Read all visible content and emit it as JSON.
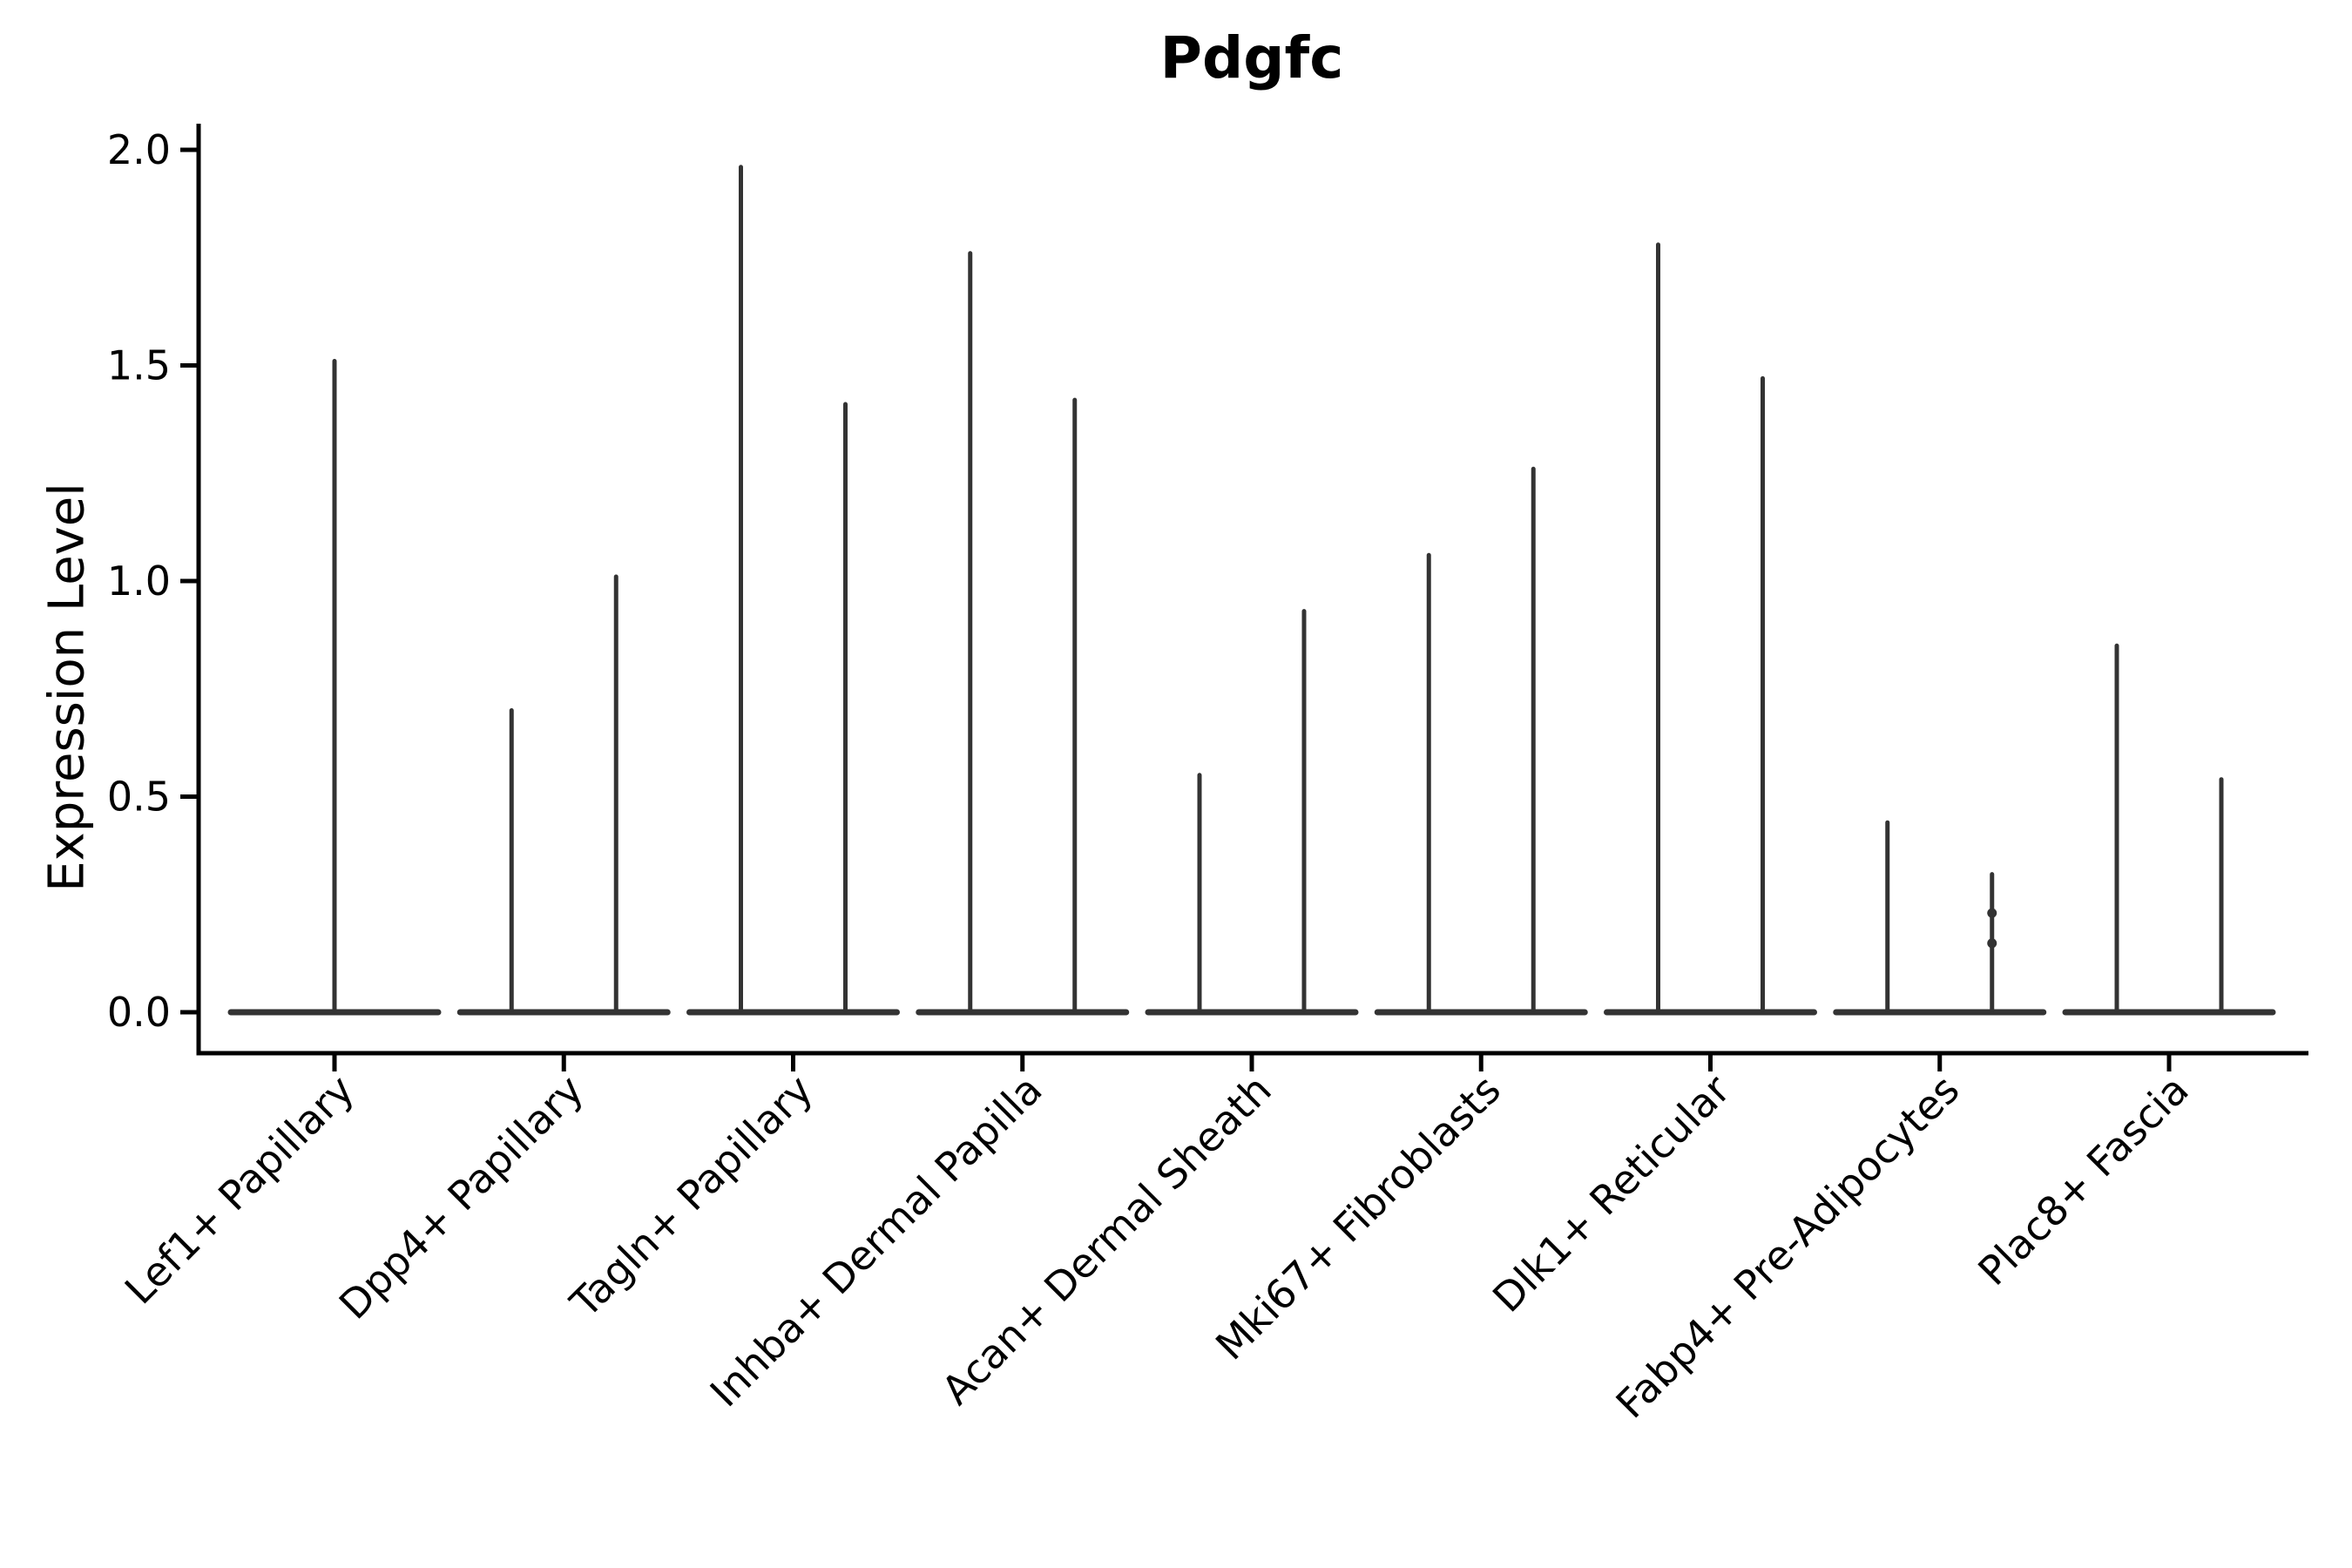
{
  "chart_data": {
    "type": "violin",
    "title": "Pdgfc",
    "ylabel": "Expression Level",
    "xlabel": "",
    "ylim": [
      0,
      2
    ],
    "ytick_labels": [
      "0.0",
      "0.5",
      "1.0",
      "1.5",
      "2.0"
    ],
    "ytick_values": [
      0.0,
      0.5,
      1.0,
      1.5,
      2.0
    ],
    "grid": false,
    "legend_position": "none",
    "categories": [
      "Lef1+ Papillary",
      "Dpp4+ Papillary",
      "Tagln+ Papillary",
      "Inhba+ Dermal Papilla",
      "Acan+ Dermal Sheath",
      "Mki67+ Fibroblasts",
      "Dlk1+ Reticular",
      "Fabp4+ Pre-Adipocytes",
      "Plac8+ Fascia"
    ],
    "violin_description": "Each violin is a flat wide base at expression 0 with a very thin density spike rising to the maximum expression value; most categories contain two violins side by side, the first category contains a single centered violin.",
    "groups": [
      {
        "category": "Lef1+ Papillary",
        "violins": [
          {
            "pos": "center",
            "max": 1.51
          }
        ]
      },
      {
        "category": "Dpp4+ Papillary",
        "violins": [
          {
            "pos": "left",
            "max": 0.7
          },
          {
            "pos": "right",
            "max": 1.01
          }
        ]
      },
      {
        "category": "Tagln+ Papillary",
        "violins": [
          {
            "pos": "left",
            "max": 1.96
          },
          {
            "pos": "right",
            "max": 1.41
          }
        ]
      },
      {
        "category": "Inhba+ Dermal Papilla",
        "violins": [
          {
            "pos": "left",
            "max": 1.76
          },
          {
            "pos": "right",
            "max": 1.42
          }
        ]
      },
      {
        "category": "Acan+ Dermal Sheath",
        "violins": [
          {
            "pos": "left",
            "max": 0.55
          },
          {
            "pos": "right",
            "max": 0.93
          }
        ]
      },
      {
        "category": "Mki67+ Fibroblasts",
        "violins": [
          {
            "pos": "left",
            "max": 1.06
          },
          {
            "pos": "right",
            "max": 1.26
          }
        ]
      },
      {
        "category": "Dlk1+ Reticular",
        "violins": [
          {
            "pos": "left",
            "max": 1.78
          },
          {
            "pos": "right",
            "max": 1.47
          }
        ]
      },
      {
        "category": "Fabp4+ Pre-Adipocytes",
        "violins": [
          {
            "pos": "left",
            "max": 0.44
          },
          {
            "pos": "right",
            "max": 0.32,
            "dots": [
              0.23,
              0.16
            ]
          }
        ]
      },
      {
        "category": "Plac8+ Fascia",
        "violins": [
          {
            "pos": "left",
            "max": 0.85
          },
          {
            "pos": "right",
            "max": 0.54
          }
        ]
      }
    ],
    "colors": {
      "violin_stroke": "#333333",
      "axis": "#000000",
      "text": "#000000",
      "background": "#ffffff"
    }
  }
}
